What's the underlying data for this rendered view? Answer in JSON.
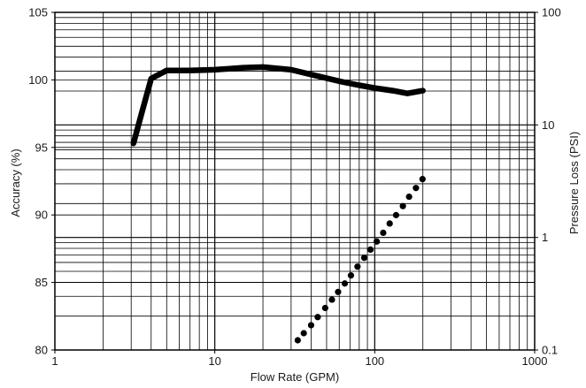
{
  "chart_data": {
    "type": "line",
    "x_scale": "log",
    "xlabel": "Flow Rate (GPM)",
    "ylabel_left": "Accuracy (%)",
    "ylabel_right": "Pressure Loss (PSI)",
    "xlim": [
      1,
      1000
    ],
    "ylim_left": [
      80,
      105
    ],
    "ylim_right": [
      0.1,
      100
    ],
    "y_right_scale": "log",
    "grid": true,
    "x_ticks": [
      "1",
      "10",
      "100",
      "1000"
    ],
    "y_left_ticks": [
      "80",
      "85",
      "90",
      "95",
      "100",
      "105"
    ],
    "y_right_ticks": [
      "0.1",
      "1",
      "10",
      "100"
    ],
    "series": [
      {
        "style": "solid",
        "axis": "left",
        "color": "#000000",
        "x": [
          3.1,
          3.5,
          4.0,
          5.0,
          7.0,
          10,
          15,
          20,
          30,
          40,
          60,
          80,
          100,
          130,
          160,
          200
        ],
        "y": [
          95.3,
          97.6,
          100.1,
          100.7,
          100.7,
          100.75,
          100.9,
          100.95,
          100.75,
          100.4,
          99.9,
          99.6,
          99.4,
          99.2,
          99.0,
          99.2
        ]
      },
      {
        "style": "dotted",
        "axis": "right",
        "color": "#000000",
        "x": [
          33,
          36,
          40,
          44,
          49,
          54,
          59,
          65,
          71,
          78,
          86,
          94,
          103,
          113,
          124,
          136,
          150,
          164,
          181,
          199
        ],
        "y": [
          0.122,
          0.141,
          0.166,
          0.196,
          0.236,
          0.28,
          0.328,
          0.39,
          0.46,
          0.55,
          0.66,
          0.78,
          0.92,
          1.1,
          1.33,
          1.58,
          1.9,
          2.3,
          2.75,
          3.3
        ]
      }
    ]
  }
}
